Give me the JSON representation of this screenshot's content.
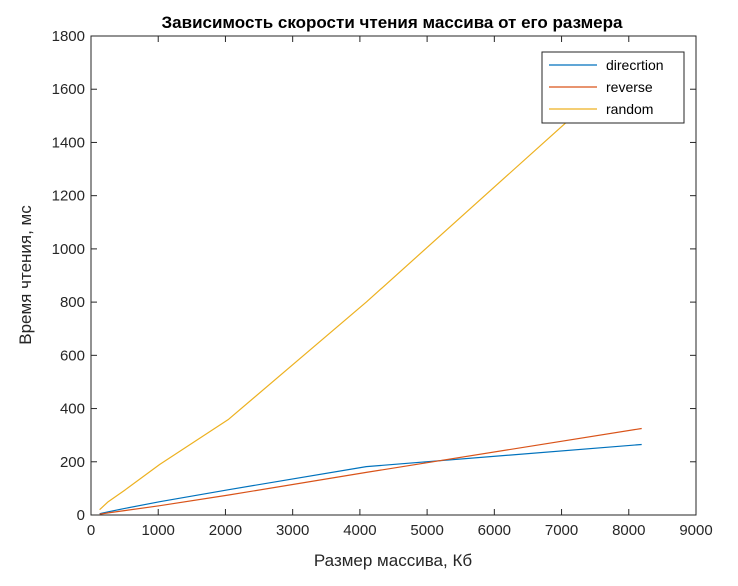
{
  "chart_data": {
    "type": "line",
    "title": "Зависимость скорости чтения массива от его размера",
    "xlabel": "Размер массива, Кб",
    "ylabel": "Время чтения, мс",
    "xlim": [
      0,
      9000
    ],
    "ylim": [
      0,
      1800
    ],
    "xticks": [
      0,
      1000,
      2000,
      3000,
      4000,
      5000,
      6000,
      7000,
      8000,
      9000
    ],
    "yticks": [
      0,
      200,
      400,
      600,
      800,
      1000,
      1200,
      1400,
      1600,
      1800
    ],
    "grid": false,
    "legend_position": "top-right",
    "series": [
      {
        "name": "direcrtion",
        "color": "#0072BD",
        "x": [
          128,
          256,
          512,
          1024,
          2048,
          4096,
          8192
        ],
        "y": [
          5,
          12,
          25,
          50,
          95,
          182,
          265
        ]
      },
      {
        "name": "reverse",
        "color": "#D95319",
        "x": [
          128,
          256,
          512,
          1024,
          2048,
          4096,
          8192
        ],
        "y": [
          3,
          8,
          17,
          35,
          75,
          160,
          325
        ]
      },
      {
        "name": "random",
        "color": "#EDB120",
        "x": [
          128,
          256,
          512,
          1024,
          2048,
          4096,
          8192
        ],
        "y": [
          20,
          50,
          95,
          190,
          360,
          800,
          1730
        ]
      }
    ]
  }
}
